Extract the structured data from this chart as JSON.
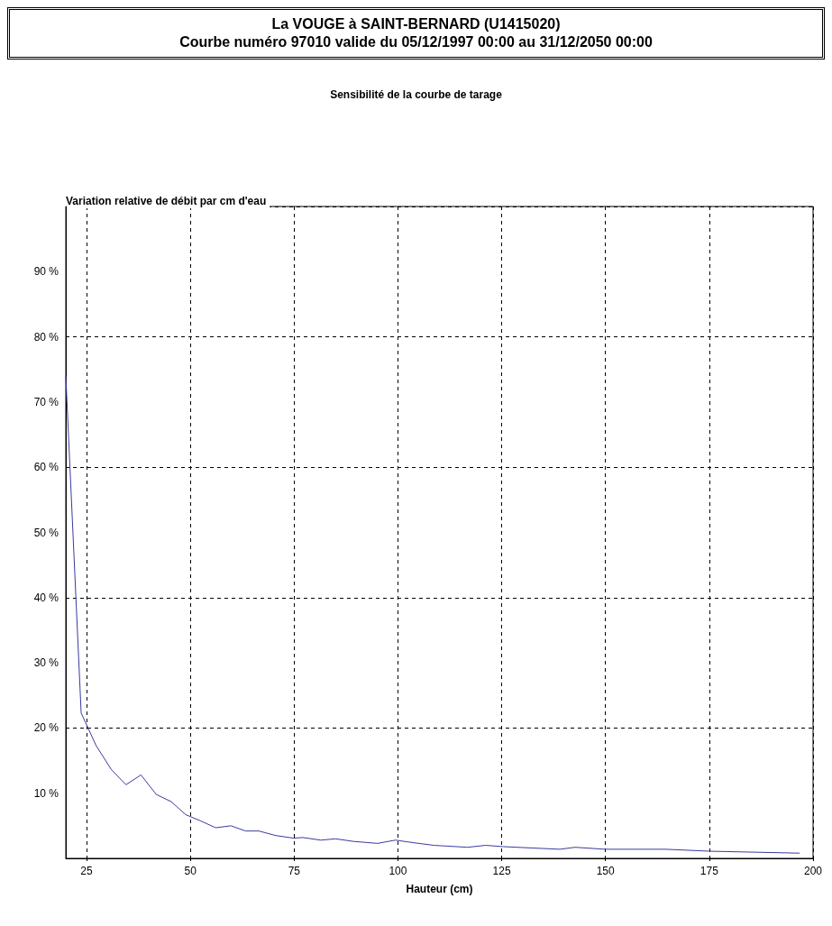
{
  "chart_data": {
    "type": "line",
    "title": "La VOUGE à SAINT-BERNARD (U1415020)",
    "subtitle": "Courbe numéro 97010 valide du 05/12/1997 00:00 au 31/12/2050 00:00",
    "annotations": [
      "Sensibilité de la courbe de tarage"
    ],
    "xlabel": "Hauteur (cm)",
    "ylabel": "Variation relative de débit par cm d'eau",
    "xlim": [
      20,
      200
    ],
    "xticks": [
      25,
      50,
      75,
      100,
      125,
      150,
      175,
      200
    ],
    "ylim": [
      0,
      100
    ],
    "yticks": [
      {
        "value": 10,
        "label": "10 %"
      },
      {
        "value": 20,
        "label": "20 %"
      },
      {
        "value": 30,
        "label": "30 %"
      },
      {
        "value": 40,
        "label": "40 %"
      },
      {
        "value": 50,
        "label": "50 %"
      },
      {
        "value": 60,
        "label": "60 %"
      },
      {
        "value": 70,
        "label": "70 %"
      },
      {
        "value": 80,
        "label": "80 %"
      },
      {
        "value": 90,
        "label": "90 %"
      }
    ],
    "grid": true,
    "marker": "none",
    "line_style": "solid",
    "series": [
      {
        "color": "#3a3aa0",
        "x": [
          20,
          23.7,
          27.3,
          31,
          34.5,
          38.1,
          41.8,
          45.4,
          48.9,
          52.3,
          56.1,
          59.8,
          63.3,
          66.5,
          70.6,
          74.9,
          77.1,
          81.4,
          85,
          89.3,
          95.1,
          99.4,
          103.8,
          108.7,
          116.8,
          121.1,
          125.4,
          139,
          142.7,
          149.9,
          164.4,
          175.2,
          196.8
        ],
        "values": [
          74,
          22.3,
          17.3,
          13.6,
          11.3,
          12.8,
          9.8,
          8.7,
          6.7,
          5.8,
          4.7,
          5.0,
          4.2,
          4.2,
          3.5,
          3.1,
          3.2,
          2.8,
          3.0,
          2.6,
          2.3,
          2.8,
          2.4,
          2.0,
          1.7,
          2.0,
          1.8,
          1.4,
          1.7,
          1.4,
          1.4,
          1.1,
          0.8
        ]
      }
    ]
  }
}
